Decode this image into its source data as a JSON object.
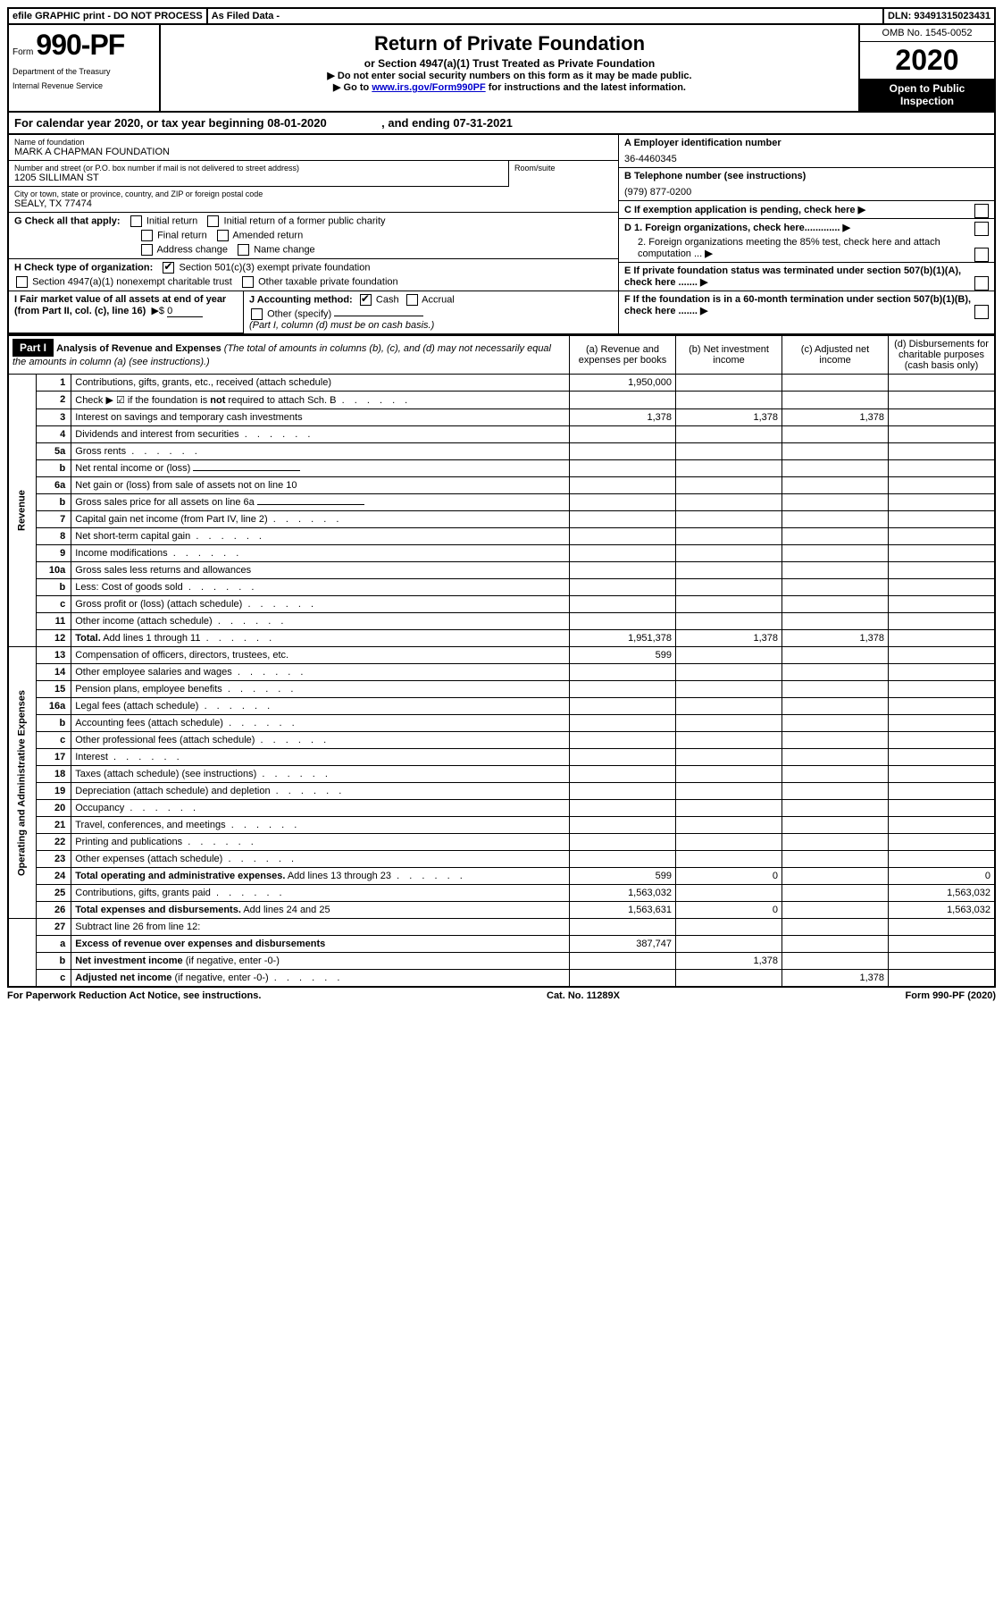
{
  "topbar": {
    "left": "efile GRAPHIC print - DO NOT PROCESS",
    "mid": "As Filed Data -",
    "right": "DLN: 93491315023431"
  },
  "formHeader": {
    "form_label": "Form",
    "form_no": "990-PF",
    "dept1": "Department of the Treasury",
    "dept2": "Internal Revenue Service",
    "title": "Return of Private Foundation",
    "subtitle": "or Section 4947(a)(1) Trust Treated as Private Foundation",
    "note1": "▶ Do not enter social security numbers on this form as it may be made public.",
    "note2_pre": "▶ Go to ",
    "note2_link": "www.irs.gov/Form990PF",
    "note2_post": " for instructions and the latest information.",
    "omb": "OMB No. 1545-0052",
    "year": "2020",
    "badge": "Open to Public Inspection"
  },
  "calYear": {
    "text1": "For calendar year 2020, or tax year beginning ",
    "begin": "08-01-2020",
    "text2": ", and ending ",
    "end": "07-31-2021"
  },
  "identity": {
    "name_label": "Name of foundation",
    "name": "MARK A CHAPMAN FOUNDATION",
    "addr_label": "Number and street (or P.O. box number if mail is not delivered to street address)",
    "room_label": "Room/suite",
    "addr": "1205 SILLIMAN ST",
    "city_label": "City or town, state or province, country, and ZIP or foreign postal code",
    "city": "SEALY, TX  77474",
    "ein_label": "A Employer identification number",
    "ein": "36-4460345",
    "phone_label": "B Telephone number (see instructions)",
    "phone": "(979) 877-0200",
    "c_label": "C If exemption application is pending, check here",
    "d1": "D 1. Foreign organizations, check here.............",
    "d2": "2. Foreign organizations meeting the 85% test, check here and attach computation ...",
    "e": "E If private foundation status was terminated under section 507(b)(1)(A), check here .......",
    "f": "F If the foundation is in a 60-month termination under section 507(b)(1)(B), check here ......."
  },
  "sectionG": {
    "label": "G Check all that apply:",
    "opts": [
      "Initial return",
      "Initial return of a former public charity",
      "Final return",
      "Amended return",
      "Address change",
      "Name change"
    ]
  },
  "sectionH": {
    "label": "H Check type of organization:",
    "opt1": "Section 501(c)(3) exempt private foundation",
    "opt2": "Section 4947(a)(1) nonexempt charitable trust",
    "opt3": "Other taxable private foundation"
  },
  "sectionI": {
    "label": "I Fair market value of all assets at end of year (from Part II, col. (c), line 16)",
    "amount_prefix": "▶$",
    "amount": "0"
  },
  "sectionJ": {
    "label": "J Accounting method:",
    "cash": "Cash",
    "accrual": "Accrual",
    "other": "Other (specify)",
    "note": "(Part I, column (d) must be on cash basis.)"
  },
  "partI": {
    "header": "Part I",
    "title": "Analysis of Revenue and Expenses",
    "subtitle": "(The total of amounts in columns (b), (c), and (d) may not necessarily equal the amounts in column (a) (see instructions).)",
    "col_a": "(a) Revenue and expenses per books",
    "col_b": "(b) Net investment income",
    "col_c": "(c) Adjusted net income",
    "col_d": "(d) Disbursements for charitable purposes (cash basis only)"
  },
  "revenueLabel": "Revenue",
  "opexLabel": "Operating and Administrative Expenses",
  "rows": [
    {
      "n": "1",
      "desc": "Contributions, gifts, grants, etc., received (attach schedule)",
      "a": "1,950,000"
    },
    {
      "n": "2",
      "desc": "Check ▶ ☑ if the foundation is <b>not</b> required to attach Sch. B",
      "dots": true
    },
    {
      "n": "3",
      "desc": "Interest on savings and temporary cash investments",
      "a": "1,378",
      "b": "1,378",
      "c": "1,378"
    },
    {
      "n": "4",
      "desc": "Dividends and interest from securities",
      "dots": true
    },
    {
      "n": "5a",
      "desc": "Gross rents",
      "dots": true
    },
    {
      "n": "b",
      "desc": "Net rental income or (loss)",
      "underline": true
    },
    {
      "n": "6a",
      "desc": "Net gain or (loss) from sale of assets not on line 10"
    },
    {
      "n": "b",
      "desc": "Gross sales price for all assets on line 6a",
      "underline": true
    },
    {
      "n": "7",
      "desc": "Capital gain net income (from Part IV, line 2)",
      "dots": true
    },
    {
      "n": "8",
      "desc": "Net short-term capital gain",
      "dots": true
    },
    {
      "n": "9",
      "desc": "Income modifications",
      "dots": true
    },
    {
      "n": "10a",
      "desc": "Gross sales less returns and allowances",
      "box": true
    },
    {
      "n": "b",
      "desc": "Less: Cost of goods sold",
      "dots": true,
      "box": true
    },
    {
      "n": "c",
      "desc": "Gross profit or (loss) (attach schedule)",
      "dots": true
    },
    {
      "n": "11",
      "desc": "Other income (attach schedule)",
      "dots": true
    },
    {
      "n": "12",
      "desc": "<b>Total.</b> Add lines 1 through 11",
      "dots": true,
      "a": "1,951,378",
      "b": "1,378",
      "c": "1,378"
    }
  ],
  "opexRows": [
    {
      "n": "13",
      "desc": "Compensation of officers, directors, trustees, etc.",
      "a": "599"
    },
    {
      "n": "14",
      "desc": "Other employee salaries and wages",
      "dots": true
    },
    {
      "n": "15",
      "desc": "Pension plans, employee benefits",
      "dots": true
    },
    {
      "n": "16a",
      "desc": "Legal fees (attach schedule)",
      "dots": true
    },
    {
      "n": "b",
      "desc": "Accounting fees (attach schedule)",
      "dots": true
    },
    {
      "n": "c",
      "desc": "Other professional fees (attach schedule)",
      "dots": true
    },
    {
      "n": "17",
      "desc": "Interest",
      "dots": true
    },
    {
      "n": "18",
      "desc": "Taxes (attach schedule) (see instructions)",
      "dots": true
    },
    {
      "n": "19",
      "desc": "Depreciation (attach schedule) and depletion",
      "dots": true
    },
    {
      "n": "20",
      "desc": "Occupancy",
      "dots": true
    },
    {
      "n": "21",
      "desc": "Travel, conferences, and meetings",
      "dots": true
    },
    {
      "n": "22",
      "desc": "Printing and publications",
      "dots": true
    },
    {
      "n": "23",
      "desc": "Other expenses (attach schedule)",
      "dots": true
    },
    {
      "n": "24",
      "desc": "<b>Total operating and administrative expenses.</b> Add lines 13 through 23",
      "dots": true,
      "a": "599",
      "b": "0",
      "d": "0"
    },
    {
      "n": "25",
      "desc": "Contributions, gifts, grants paid",
      "dots": true,
      "a": "1,563,032",
      "d": "1,563,032"
    },
    {
      "n": "26",
      "desc": "<b>Total expenses and disbursements.</b> Add lines 24 and 25",
      "a": "1,563,631",
      "b": "0",
      "d": "1,563,032"
    }
  ],
  "finalRows": [
    {
      "n": "27",
      "desc": "Subtract line 26 from line 12:"
    },
    {
      "n": "a",
      "desc": "<b>Excess of revenue over expenses and disbursements</b>",
      "a": "387,747"
    },
    {
      "n": "b",
      "desc": "<b>Net investment income</b> (if negative, enter -0-)",
      "b": "1,378"
    },
    {
      "n": "c",
      "desc": "<b>Adjusted net income</b> (if negative, enter -0-)",
      "dots": true,
      "c": "1,378"
    }
  ],
  "footer": {
    "left": "For Paperwork Reduction Act Notice, see instructions.",
    "mid": "Cat. No. 11289X",
    "right": "Form 990-PF (2020)"
  }
}
